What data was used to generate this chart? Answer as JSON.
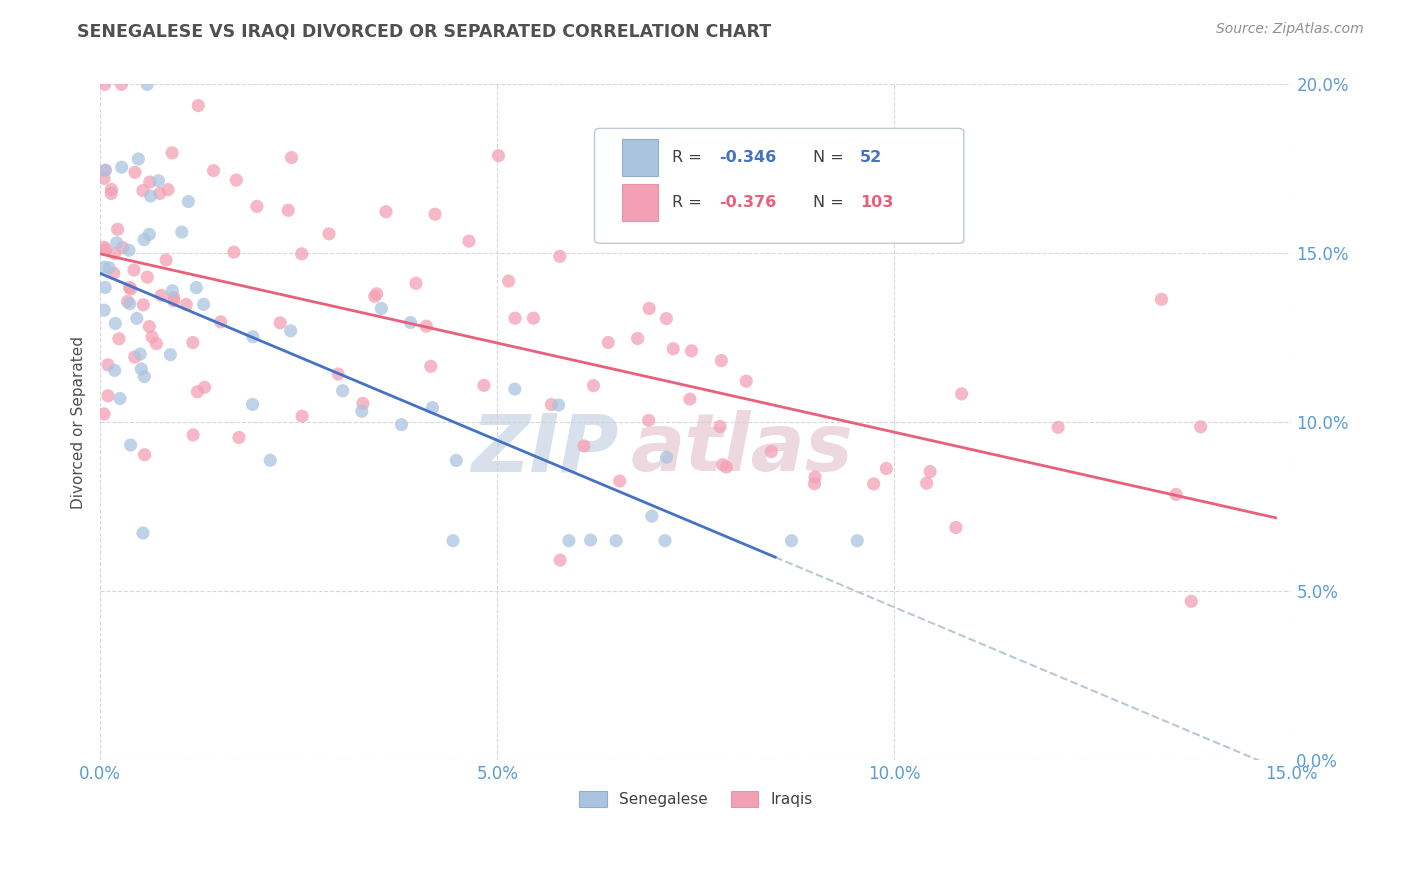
{
  "title": "SENEGALESE VS IRAQI DIVORCED OR SEPARATED CORRELATION CHART",
  "source": "Source: ZipAtlas.com",
  "ylabel": "Divorced or Separated",
  "xlim": [
    0,
    0.15
  ],
  "ylim": [
    0,
    0.2
  ],
  "x_ticks": [
    0.0,
    0.05,
    0.1,
    0.15
  ],
  "y_ticks": [
    0.0,
    0.05,
    0.1,
    0.15,
    0.2
  ],
  "senegalese_color": "#aac4e0",
  "iraqi_color": "#f4a0b4",
  "trend_senegalese_color": "#4472c4",
  "trend_iraqi_color": "#e8607a",
  "trend_dashed_color": "#b8c8d8",
  "background_color": "#ffffff",
  "grid_color": "#d8d8d8",
  "title_color": "#505050",
  "tick_color": "#5b9bd5",
  "watermark_zip_color": "#c8d4e4",
  "watermark_atlas_color": "#e4c8d0",
  "n_senegalese": 52,
  "n_iraqi": 103
}
